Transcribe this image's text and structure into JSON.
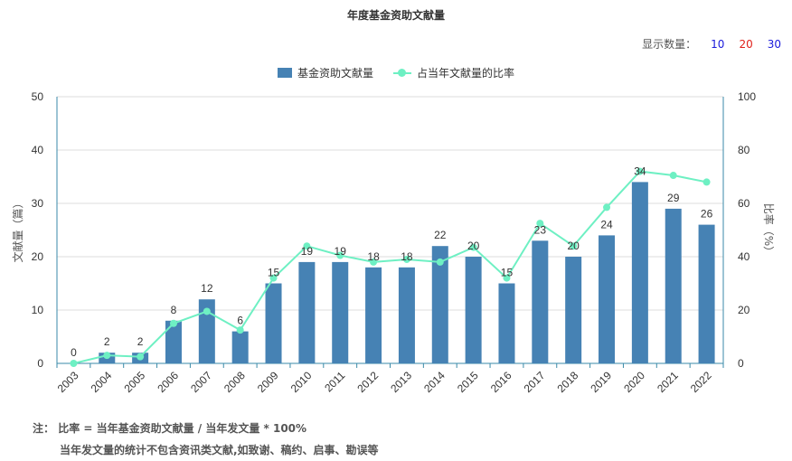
{
  "title": "年度基金资助文献量",
  "count_selector": {
    "label": "显示数量：",
    "options": [
      "10",
      "20",
      "30"
    ],
    "colors": [
      "#1a1adb",
      "#e0201a",
      "#1a1adb"
    ]
  },
  "legend": {
    "bar": "基金资助文献量",
    "line": "占当年文献量的比率"
  },
  "notes": {
    "prefix": "注：",
    "line1": "比率 = 当年基金资助文献量 / 当年发文量 * 100%",
    "line2": "当年发文量的统计不包含资讯类文献,如致谢、稿约、启事、勘误等"
  },
  "chart_data": {
    "type": "bar",
    "categories": [
      "2003",
      "2004",
      "2005",
      "2006",
      "2007",
      "2008",
      "2009",
      "2010",
      "2011",
      "2012",
      "2013",
      "2014",
      "2015",
      "2016",
      "2017",
      "2018",
      "2019",
      "2020",
      "2021",
      "2022"
    ],
    "series": [
      {
        "name": "基金资助文献量",
        "type": "bar",
        "axis": "left",
        "color": "#4682b4",
        "values": [
          0,
          2,
          2,
          8,
          12,
          6,
          15,
          19,
          19,
          18,
          18,
          22,
          20,
          15,
          23,
          20,
          24,
          34,
          29,
          26
        ]
      },
      {
        "name": "占当年文献量的比率",
        "type": "line",
        "axis": "right",
        "color": "#6ef0c3",
        "values": [
          0,
          3,
          2.5,
          15,
          19.5,
          12.5,
          32,
          44,
          40.5,
          38,
          39,
          38,
          43.5,
          32,
          52.5,
          44,
          58.5,
          72,
          70.5,
          68
        ]
      }
    ],
    "ylabel": "文献量（篇）",
    "y2label": "比率（%）",
    "ylim": [
      0,
      50
    ],
    "y2lim": [
      0,
      100
    ],
    "yticks": [
      0,
      10,
      20,
      30,
      40,
      50
    ],
    "y2ticks": [
      0,
      20,
      40,
      60,
      80,
      100
    ],
    "grid": true,
    "legend_position": "top-center"
  }
}
